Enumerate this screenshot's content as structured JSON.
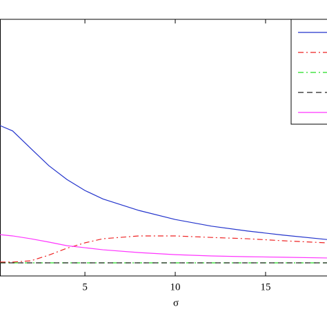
{
  "chart_data": {
    "type": "line",
    "xlabel": "σ",
    "x": [
      0.3,
      1,
      2,
      3,
      4,
      5,
      6,
      8,
      10,
      12,
      14,
      16,
      18.4
    ],
    "xlim": [
      0.3,
      18.4
    ],
    "xticks": [
      5,
      10,
      15
    ],
    "ylim": [
      0,
      1
    ],
    "legend": "upper right",
    "series": [
      {
        "color": "#2233cc",
        "style": "solid",
        "values": [
          0.586,
          0.565,
          0.497,
          0.43,
          0.376,
          0.333,
          0.3,
          0.255,
          0.22,
          0.194,
          0.175,
          0.159,
          0.142
        ]
      },
      {
        "color": "#ee2222",
        "style": "dashdot",
        "values": [
          0.054,
          0.054,
          0.059,
          0.081,
          0.108,
          0.129,
          0.145,
          0.156,
          0.156,
          0.15,
          0.145,
          0.137,
          0.129
        ]
      },
      {
        "color": "#22dd22",
        "style": "dashdot",
        "values": [
          0.051,
          0.051,
          0.051,
          0.051,
          0.051,
          0.051,
          0.051,
          0.051,
          0.051,
          0.051,
          0.051,
          0.051,
          0.051
        ]
      },
      {
        "color": "#222222",
        "style": "dashed",
        "values": [
          0.051,
          0.051,
          0.051,
          0.051,
          0.051,
          0.051,
          0.051,
          0.051,
          0.051,
          0.051,
          0.051,
          0.051,
          0.051
        ]
      },
      {
        "color": "#ff33ff",
        "style": "solid",
        "values": [
          0.161,
          0.156,
          0.145,
          0.132,
          0.118,
          0.11,
          0.102,
          0.091,
          0.083,
          0.078,
          0.075,
          0.073,
          0.07
        ]
      }
    ]
  }
}
